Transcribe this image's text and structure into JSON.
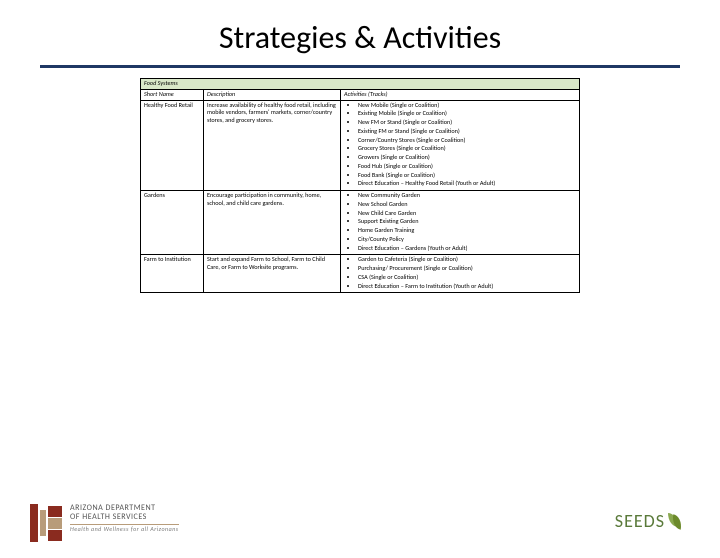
{
  "title": "Strategies & Activities",
  "table": {
    "section": "Food Systems",
    "headers": {
      "short": "Short Name",
      "desc": "Description",
      "act": "Activities (Tracks)"
    },
    "rows": [
      {
        "short": "Healthy Food Retail",
        "desc": "Increase availability of healthy food retail, including mobile vendors, farmers' markets, corner/country stores, and grocery stores.",
        "activities": [
          "New Mobile (Single or Coalition)",
          "Existing Mobile (Single or Coalition)",
          "New FM or Stand (Single or Coalition)",
          "Existing FM or Stand (Single or Coalition)",
          "Corner/Country Stores (Single or Coalition)",
          "Grocery Stores (Single or Coalition)",
          "Growers (Single or Coalition)",
          "Food Hub (Single or Coalition)",
          "Food Bank (Single or Coalition)",
          "Direct Education – Healthy Food Retail (Youth or Adult)"
        ]
      },
      {
        "short": "Gardens",
        "desc": "Encourage participation in community, home, school, and child care gardens.",
        "activities": [
          "New Community Garden",
          "New School Garden",
          "New Child Care Garden",
          "Support Existing Garden",
          "Home Garden Training",
          "City/County Policy",
          "Direct Education – Gardens (Youth or Adult)"
        ]
      },
      {
        "short": "Farm to Institution",
        "desc": "Start and expand Farm to School, Farm to Child Care, or Farm to Worksite programs.",
        "activities": [
          "Garden to Cafeteria (Single or Coalition)",
          "Purchasing/ Procurement (Single or Coalition)",
          "CSA (Single or Coalition)",
          "Direct Education – Farm to Institution (Youth or Adult)"
        ]
      }
    ]
  },
  "footer": {
    "left_line1": "ARIZONA DEPARTMENT",
    "left_line2": "OF HEALTH SERVICES",
    "left_tag": "Health and Wellness for all Arizonans",
    "right": "SEEDS"
  },
  "colors": {
    "rule": "#1f3864",
    "section_bg": "#d9e8c8",
    "seeds": "#5a7a3a"
  }
}
